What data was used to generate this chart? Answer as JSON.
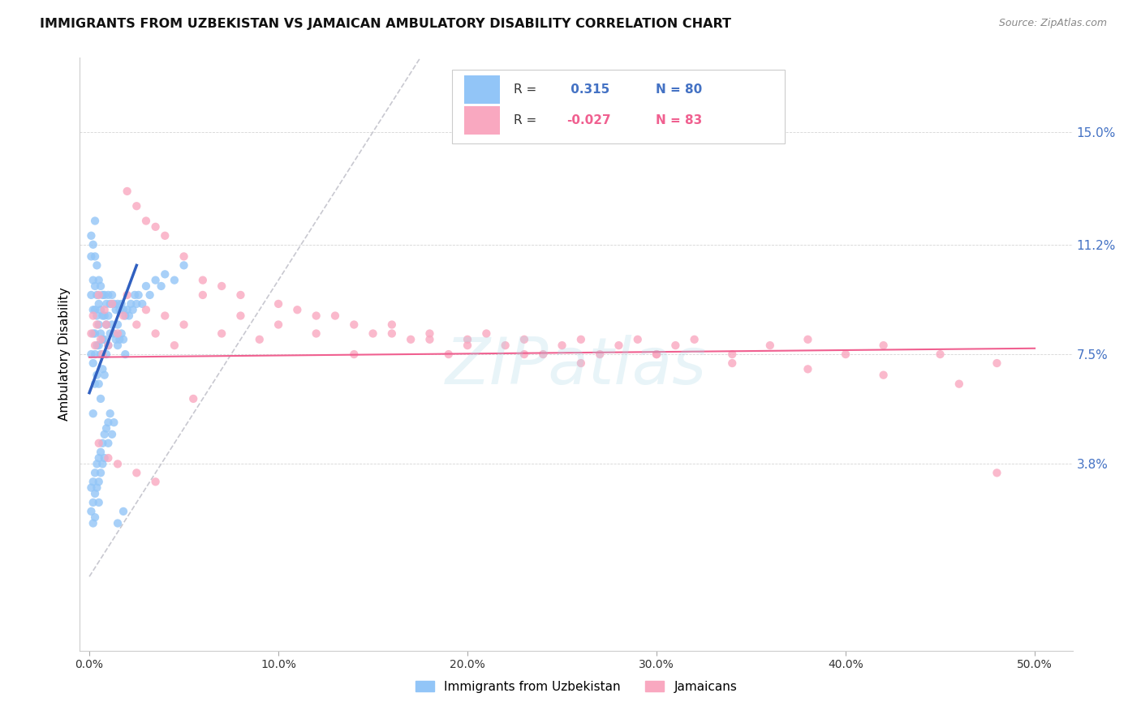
{
  "title": "IMMIGRANTS FROM UZBEKISTAN VS JAMAICAN AMBULATORY DISABILITY CORRELATION CHART",
  "source": "Source: ZipAtlas.com",
  "xlabel_ticks": [
    "0.0%",
    "10.0%",
    "20.0%",
    "30.0%",
    "40.0%",
    "50.0%"
  ],
  "xlabel_vals": [
    0.0,
    0.1,
    0.2,
    0.3,
    0.4,
    0.5
  ],
  "ylabel_ticks": [
    "3.8%",
    "7.5%",
    "11.2%",
    "15.0%"
  ],
  "ylabel_vals": [
    0.038,
    0.075,
    0.112,
    0.15
  ],
  "ylabel_label": "Ambulatory Disability",
  "legend_labels": [
    "Immigrants from Uzbekistan",
    "Jamaicans"
  ],
  "R_uzbek": 0.315,
  "N_uzbek": 80,
  "R_jamaican": -0.027,
  "N_jamaican": 83,
  "color_uzbek": "#92C5F7",
  "color_jamaican": "#F9A8C0",
  "trendline_uzbek_color": "#3060C0",
  "trendline_jamaican_color": "#F06090",
  "diagonal_color": "#C8C8D0",
  "background_color": "#FFFFFF",
  "uzbek_x": [
    0.001,
    0.001,
    0.001,
    0.001,
    0.002,
    0.002,
    0.002,
    0.002,
    0.002,
    0.002,
    0.003,
    0.003,
    0.003,
    0.003,
    0.003,
    0.003,
    0.003,
    0.004,
    0.004,
    0.004,
    0.004,
    0.004,
    0.005,
    0.005,
    0.005,
    0.005,
    0.005,
    0.006,
    0.006,
    0.006,
    0.006,
    0.006,
    0.007,
    0.007,
    0.007,
    0.007,
    0.008,
    0.008,
    0.008,
    0.008,
    0.009,
    0.009,
    0.009,
    0.01,
    0.01,
    0.01,
    0.011,
    0.011,
    0.012,
    0.012,
    0.013,
    0.013,
    0.014,
    0.014,
    0.015,
    0.015,
    0.015,
    0.016,
    0.016,
    0.017,
    0.017,
    0.018,
    0.018,
    0.019,
    0.019,
    0.02,
    0.021,
    0.022,
    0.023,
    0.024,
    0.025,
    0.026,
    0.028,
    0.03,
    0.032,
    0.035,
    0.038,
    0.04,
    0.045,
    0.05
  ],
  "uzbek_y": [
    0.115,
    0.108,
    0.095,
    0.075,
    0.112,
    0.1,
    0.09,
    0.082,
    0.072,
    0.055,
    0.12,
    0.108,
    0.098,
    0.09,
    0.082,
    0.075,
    0.065,
    0.105,
    0.095,
    0.088,
    0.078,
    0.068,
    0.1,
    0.092,
    0.085,
    0.078,
    0.065,
    0.098,
    0.09,
    0.082,
    0.075,
    0.06,
    0.095,
    0.088,
    0.08,
    0.07,
    0.095,
    0.088,
    0.08,
    0.068,
    0.092,
    0.085,
    0.075,
    0.095,
    0.088,
    0.078,
    0.092,
    0.082,
    0.095,
    0.085,
    0.092,
    0.082,
    0.09,
    0.08,
    0.092,
    0.085,
    0.078,
    0.09,
    0.08,
    0.092,
    0.082,
    0.09,
    0.08,
    0.088,
    0.075,
    0.09,
    0.088,
    0.092,
    0.09,
    0.095,
    0.092,
    0.095,
    0.092,
    0.098,
    0.095,
    0.1,
    0.098,
    0.102,
    0.1,
    0.105
  ],
  "uzbek_y_low": [
    0.038,
    0.03,
    0.025,
    0.02,
    0.042,
    0.035,
    0.028,
    0.022,
    0.018,
    0.012,
    0.048,
    0.04,
    0.032,
    0.025,
    0.02,
    0.015,
    0.01,
    0.045,
    0.038,
    0.03,
    0.025,
    0.018,
    0.045,
    0.035,
    0.028,
    0.022,
    0.015
  ],
  "jamaican_x": [
    0.001,
    0.002,
    0.003,
    0.004,
    0.005,
    0.006,
    0.007,
    0.008,
    0.009,
    0.01,
    0.012,
    0.015,
    0.018,
    0.02,
    0.025,
    0.03,
    0.035,
    0.04,
    0.045,
    0.05,
    0.06,
    0.07,
    0.08,
    0.09,
    0.1,
    0.11,
    0.12,
    0.13,
    0.14,
    0.15,
    0.16,
    0.17,
    0.18,
    0.19,
    0.2,
    0.21,
    0.22,
    0.23,
    0.24,
    0.25,
    0.26,
    0.27,
    0.28,
    0.29,
    0.3,
    0.31,
    0.32,
    0.34,
    0.36,
    0.38,
    0.4,
    0.42,
    0.45,
    0.48,
    0.02,
    0.025,
    0.03,
    0.035,
    0.04,
    0.05,
    0.06,
    0.07,
    0.08,
    0.1,
    0.12,
    0.14,
    0.16,
    0.18,
    0.2,
    0.23,
    0.26,
    0.3,
    0.34,
    0.38,
    0.42,
    0.46,
    0.005,
    0.01,
    0.015,
    0.025,
    0.035,
    0.055,
    0.48
  ],
  "jamaican_y": [
    0.082,
    0.088,
    0.078,
    0.085,
    0.095,
    0.08,
    0.075,
    0.09,
    0.085,
    0.078,
    0.092,
    0.082,
    0.088,
    0.095,
    0.085,
    0.09,
    0.082,
    0.088,
    0.078,
    0.085,
    0.095,
    0.082,
    0.088,
    0.08,
    0.085,
    0.09,
    0.082,
    0.088,
    0.075,
    0.082,
    0.085,
    0.08,
    0.082,
    0.075,
    0.08,
    0.082,
    0.078,
    0.08,
    0.075,
    0.078,
    0.08,
    0.075,
    0.078,
    0.08,
    0.075,
    0.078,
    0.08,
    0.075,
    0.078,
    0.08,
    0.075,
    0.078,
    0.075,
    0.072,
    0.13,
    0.125,
    0.12,
    0.118,
    0.115,
    0.108,
    0.1,
    0.098,
    0.095,
    0.092,
    0.088,
    0.085,
    0.082,
    0.08,
    0.078,
    0.075,
    0.072,
    0.075,
    0.072,
    0.07,
    0.068,
    0.065,
    0.045,
    0.04,
    0.038,
    0.035,
    0.032,
    0.06,
    0.035
  ],
  "xlim": [
    -0.005,
    0.52
  ],
  "ylim": [
    -0.025,
    0.175
  ]
}
